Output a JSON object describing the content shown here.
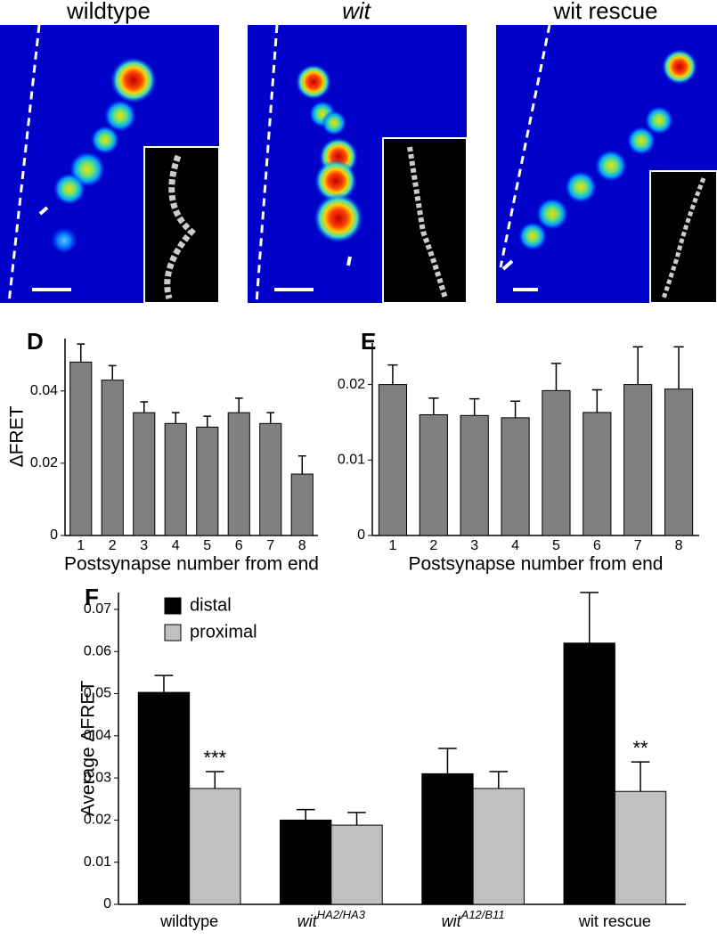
{
  "images": {
    "titles": [
      "wildtype",
      "wit",
      "wit rescue"
    ]
  },
  "chart_data": [
    {
      "type": "bar",
      "panel_label": "D",
      "ylabel": "ΔFRET",
      "xlabel": "Postsynapse number from end",
      "categories": [
        "1",
        "2",
        "3",
        "4",
        "5",
        "6",
        "7",
        "8"
      ],
      "series": [
        {
          "color": "#808080",
          "values": [
            0.048,
            0.043,
            0.034,
            0.031,
            0.03,
            0.034,
            0.031,
            0.017
          ],
          "errors": [
            0.005,
            0.004,
            0.003,
            0.003,
            0.003,
            0.004,
            0.003,
            0.005
          ]
        }
      ],
      "ylim": [
        0,
        0.0545
      ],
      "yticks": [
        0,
        0.02,
        0.04
      ]
    },
    {
      "type": "bar",
      "panel_label": "E",
      "xlabel": "Postsynapse number from end",
      "categories": [
        "1",
        "2",
        "3",
        "4",
        "5",
        "6",
        "7",
        "8"
      ],
      "series": [
        {
          "color": "#808080",
          "values": [
            0.02,
            0.016,
            0.0159,
            0.0156,
            0.0192,
            0.0163,
            0.02,
            0.0194
          ],
          "errors": [
            0.0026,
            0.0022,
            0.0022,
            0.0022,
            0.0036,
            0.003,
            0.005,
            0.0056
          ]
        }
      ],
      "ylim": [
        0,
        0.0255
      ],
      "yticks": [
        0,
        0.01,
        0.02
      ]
    },
    {
      "type": "grouped-bar",
      "panel_label": "F",
      "ylabel": "Average ΔFRET",
      "categories": [
        "wildtype",
        "wit",
        "wit",
        "wit rescue"
      ],
      "category_superscripts": [
        null,
        "HA2/HA3",
        "A12/B11",
        null
      ],
      "series": [
        {
          "name": "distal",
          "color": "#000000",
          "values": [
            0.0503,
            0.02,
            0.031,
            0.062
          ],
          "errors": [
            0.004,
            0.0025,
            0.006,
            0.012
          ]
        },
        {
          "name": "proximal",
          "color": "#c0c0c0",
          "values": [
            0.0275,
            0.0188,
            0.0275,
            0.0268
          ],
          "errors": [
            0.004,
            0.003,
            0.004,
            0.007
          ]
        }
      ],
      "annotations": [
        {
          "text": "***",
          "series": 1,
          "index": 0
        },
        {
          "text": "**",
          "series": 1,
          "index": 3
        }
      ],
      "ylim": [
        0,
        0.074
      ],
      "yticks": [
        0,
        0.01,
        0.02,
        0.03,
        0.04,
        0.05,
        0.06,
        0.07
      ],
      "legend": "top-left"
    }
  ]
}
